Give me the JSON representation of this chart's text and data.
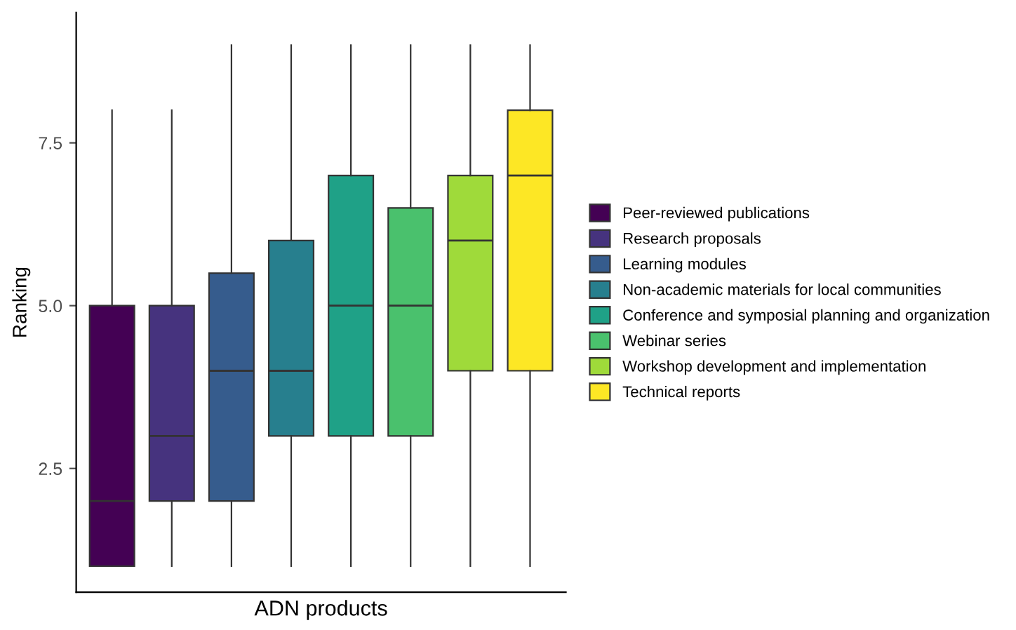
{
  "chart_data": {
    "type": "box",
    "xlabel": "ADN products",
    "ylabel": "Ranking",
    "categories": [
      null,
      null,
      null,
      null,
      null,
      null,
      null,
      null
    ],
    "ylim": [
      0.6,
      9.5
    ],
    "yticks": [
      2.5,
      {
        "value": 5,
        "label": "5.0"
      },
      7.5
    ],
    "tick_labels": "y",
    "grid": false,
    "legend": "right",
    "series": [
      {
        "name": "Peer-reviewed publications",
        "color": "#440154",
        "boxes": [
          {
            "low": 1,
            "q1": 1,
            "median": 2,
            "q3": 5,
            "high": 8
          },
          null,
          null,
          null,
          null,
          null,
          null,
          null
        ]
      },
      {
        "name": "Research proposals",
        "color": "#46337e",
        "boxes": [
          null,
          {
            "low": 1,
            "q1": 2,
            "median": 3,
            "q3": 5,
            "high": 8
          },
          null,
          null,
          null,
          null,
          null,
          null
        ]
      },
      {
        "name": "Learning modules",
        "color": "#365c8d",
        "boxes": [
          null,
          null,
          {
            "low": 1,
            "q1": 2,
            "median": 4,
            "q3": 5.5,
            "high": 9
          },
          null,
          null,
          null,
          null,
          null
        ]
      },
      {
        "name": "Non-academic materials for local communities",
        "color": "#277f8e",
        "boxes": [
          null,
          null,
          null,
          {
            "low": 1,
            "q1": 3,
            "median": 4,
            "q3": 6,
            "high": 9
          },
          null,
          null,
          null,
          null
        ]
      },
      {
        "name": "Conference and symposial planning and organization",
        "color": "#1fa187",
        "boxes": [
          null,
          null,
          null,
          null,
          {
            "low": 1,
            "q1": 3,
            "median": 5,
            "q3": 7,
            "high": 9
          },
          null,
          null,
          null
        ]
      },
      {
        "name": "Webinar series",
        "color": "#4ac16d",
        "boxes": [
          null,
          null,
          null,
          null,
          null,
          {
            "low": 1,
            "q1": 3,
            "median": 5,
            "q3": 6.5,
            "high": 9
          },
          null,
          null
        ]
      },
      {
        "name": "Workshop development and implementation",
        "color": "#9fda3a",
        "boxes": [
          null,
          null,
          null,
          null,
          null,
          null,
          {
            "low": 1,
            "q1": 4,
            "median": 6,
            "q3": 7,
            "high": 9
          },
          null
        ]
      },
      {
        "name": "Technical reports",
        "color": "#fde725",
        "boxes": [
          null,
          null,
          null,
          null,
          null,
          null,
          null,
          {
            "low": 1,
            "q1": 4,
            "median": 7,
            "q3": 8,
            "high": 9
          }
        ]
      }
    ]
  }
}
